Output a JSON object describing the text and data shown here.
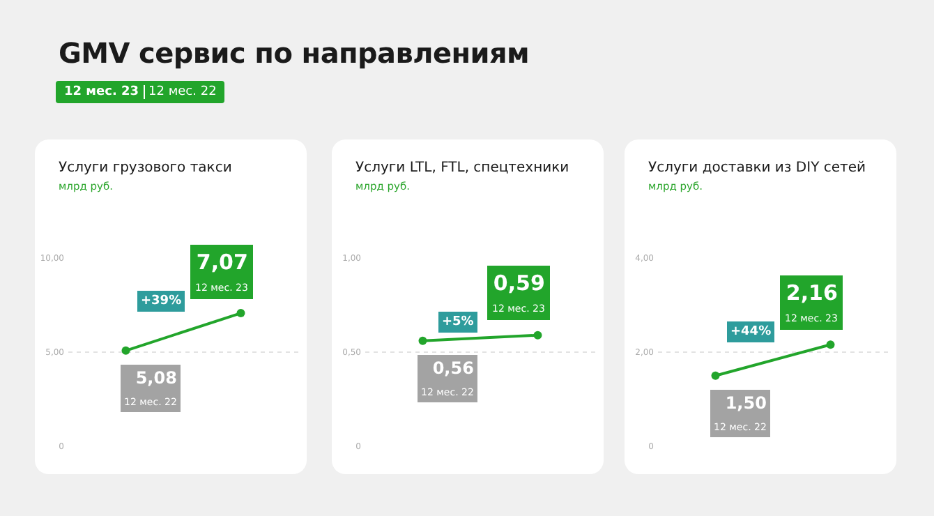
{
  "chart_data": [
    {
      "type": "other",
      "title": "GMV сервис по направлениям",
      "annotations": [
        "12 мес. 23",
        "12 мес. 22"
      ]
    },
    {
      "type": "line",
      "title": "Услуги грузового такси",
      "subtitle": "млрд руб.",
      "categories": [
        "12 мес. 22",
        "12 мес. 23"
      ],
      "series": [
        {
          "color": "#22a52b",
          "values": [
            5.08,
            7.07
          ],
          "value_labels": [
            "5,08",
            "7,07"
          ]
        }
      ],
      "ylim": [
        0,
        10
      ],
      "yticks": [
        {
          "value": 0,
          "label": "0"
        },
        {
          "value": 5,
          "label": "5,00"
        },
        {
          "value": 10,
          "label": "10,00"
        }
      ],
      "grid": "y",
      "tick_labels": "y",
      "marker": "circle",
      "line_style": "solid",
      "annotations": [
        "+39%"
      ]
    },
    {
      "type": "line",
      "title": "Услуги LTL, FTL, спецтехники",
      "subtitle": "млрд руб.",
      "categories": [
        "12 мес. 22",
        "12 мес. 23"
      ],
      "series": [
        {
          "color": "#22a52b",
          "values": [
            0.56,
            0.59
          ],
          "value_labels": [
            "0,56",
            "0,59"
          ]
        }
      ],
      "ylim": [
        0,
        1
      ],
      "yticks": [
        {
          "value": 0,
          "label": "0"
        },
        {
          "value": 0.5,
          "label": "0,50"
        },
        {
          "value": 1,
          "label": "1,00"
        }
      ],
      "grid": "y",
      "tick_labels": "y",
      "marker": "circle",
      "line_style": "solid",
      "annotations": [
        "+5%"
      ]
    },
    {
      "type": "line",
      "title": "Услуги доставки из DIY сетей",
      "subtitle": "млрд руб.",
      "categories": [
        "12 мес. 22",
        "12 мес. 23"
      ],
      "series": [
        {
          "color": "#22a52b",
          "values": [
            1.5,
            2.16
          ],
          "value_labels": [
            "1,50",
            "2,16"
          ]
        }
      ],
      "ylim": [
        0,
        4
      ],
      "yticks": [
        {
          "value": 0,
          "label": "0"
        },
        {
          "value": 2,
          "label": "2,00"
        },
        {
          "value": 4,
          "label": "4,00"
        }
      ],
      "grid": "y",
      "tick_labels": "y",
      "marker": "circle",
      "line_style": "solid",
      "annotations": [
        "+44%"
      ]
    }
  ]
}
